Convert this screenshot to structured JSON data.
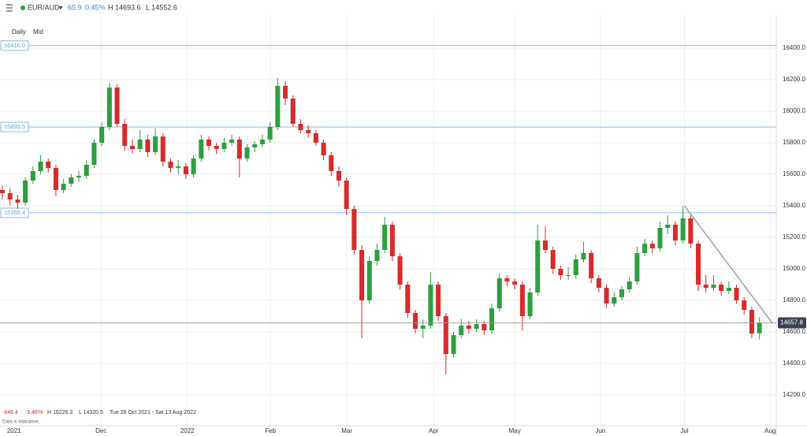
{
  "header": {
    "pair": "EUR/AUD",
    "change": "65.9",
    "change_pct": "0.45%",
    "high": "H 14693.6",
    "low": "L 14552.6"
  },
  "controls": {
    "interval": "Daily",
    "price_type": "Mid"
  },
  "footer": {
    "change": "-846.4",
    "change_pct": "-5.46%",
    "high": "H 16226.3",
    "low": "L 14320.5",
    "range": "Tue 26 Oct 2021 - Sat 13 Aug 2022",
    "note": "Data is indicative"
  },
  "chart_data": {
    "type": "candlestick",
    "up_color": "#2e9e3e",
    "down_color": "#d92a2a",
    "xlim": [
      -0.31,
      101.2
    ],
    "xticks": [
      {
        "value": 0.6,
        "label": "2021"
      },
      {
        "value": 12.9,
        "label": "Dec"
      },
      {
        "value": 24.2,
        "label": "2022"
      },
      {
        "value": 35.05,
        "label": "Feb"
      },
      {
        "value": 45.05,
        "label": "Mar"
      },
      {
        "value": 56.4,
        "label": "Apr"
      },
      {
        "value": 67.0,
        "label": "May"
      },
      {
        "value": 78.2,
        "label": "Jun"
      },
      {
        "value": 89.2,
        "label": "Jul"
      },
      {
        "value": 100.4,
        "label": "Aug"
      }
    ],
    "ylim": [
      14005,
      16605
    ],
    "yticks": [
      {
        "value": 14200,
        "label": "14200.0"
      },
      {
        "value": 14400,
        "label": "14400.0"
      },
      {
        "value": 14600,
        "label": "14600.0"
      },
      {
        "value": 14800,
        "label": "14800.0"
      },
      {
        "value": 15000,
        "label": "15000.0"
      },
      {
        "value": 15200,
        "label": "15200.0"
      },
      {
        "value": 15400,
        "label": "15400.0"
      },
      {
        "value": 15600,
        "label": "15600.0"
      },
      {
        "value": 15800,
        "label": "15800.0"
      },
      {
        "value": 16000,
        "label": "16000.0"
      },
      {
        "value": 16200,
        "label": "16200.0"
      },
      {
        "value": 16400,
        "label": "16400.0"
      }
    ],
    "grid": true,
    "levels": [
      {
        "value": 16416.0,
        "label": "16416.0"
      },
      {
        "value": 15899.5,
        "label": "15899.5"
      },
      {
        "value": 15355.4,
        "label": "15355.4"
      }
    ],
    "level_color": "#8cb8e8",
    "last_price": {
      "value": 14657.8,
      "label": "14657.8"
    },
    "trendline": {
      "x": [
        89.2,
        100.7
      ],
      "y": [
        15400,
        14655
      ]
    },
    "candles": [
      [
        15500,
        15530,
        15440,
        15480
      ],
      [
        15480,
        15510,
        15400,
        15440
      ],
      [
        15440,
        15470,
        15380,
        15420
      ],
      [
        15420,
        15580,
        15400,
        15560
      ],
      [
        15560,
        15650,
        15540,
        15620
      ],
      [
        15620,
        15720,
        15600,
        15680
      ],
      [
        15680,
        15700,
        15610,
        15640
      ],
      [
        15640,
        15660,
        15460,
        15500
      ],
      [
        15500,
        15570,
        15480,
        15540
      ],
      [
        15540,
        15600,
        15520,
        15580
      ],
      [
        15580,
        15620,
        15550,
        15590
      ],
      [
        15590,
        15690,
        15570,
        15660
      ],
      [
        15660,
        15820,
        15640,
        15800
      ],
      [
        15800,
        15930,
        15780,
        15900
      ],
      [
        15900,
        16180,
        15880,
        16150
      ],
      [
        16150,
        16170,
        15900,
        15920
      ],
      [
        15920,
        15950,
        15750,
        15780
      ],
      [
        15780,
        15820,
        15730,
        15760
      ],
      [
        15760,
        15880,
        15740,
        15820
      ],
      [
        15820,
        15850,
        15710,
        15740
      ],
      [
        15740,
        15890,
        15720,
        15840
      ],
      [
        15840,
        15860,
        15650,
        15680
      ],
      [
        15680,
        15700,
        15610,
        15640
      ],
      [
        15640,
        15690,
        15600,
        15650
      ],
      [
        15650,
        15670,
        15570,
        15600
      ],
      [
        15600,
        15720,
        15580,
        15700
      ],
      [
        15700,
        15850,
        15680,
        15820
      ],
      [
        15820,
        15840,
        15750,
        15780
      ],
      [
        15780,
        15800,
        15730,
        15760
      ],
      [
        15760,
        15830,
        15740,
        15800
      ],
      [
        15800,
        15850,
        15780,
        15820
      ],
      [
        15820,
        15840,
        15580,
        15700
      ],
      [
        15700,
        15790,
        15680,
        15770
      ],
      [
        15770,
        15810,
        15740,
        15790
      ],
      [
        15790,
        15850,
        15770,
        15820
      ],
      [
        15820,
        15930,
        15800,
        15900
      ],
      [
        15900,
        16210,
        15880,
        16160
      ],
      [
        16160,
        16190,
        16040,
        16080
      ],
      [
        16080,
        16100,
        15900,
        15920
      ],
      [
        15920,
        15950,
        15860,
        15880
      ],
      [
        15880,
        15910,
        15830,
        15860
      ],
      [
        15860,
        15880,
        15780,
        15800
      ],
      [
        15800,
        15820,
        15690,
        15720
      ],
      [
        15720,
        15740,
        15590,
        15620
      ],
      [
        15620,
        15650,
        15520,
        15560
      ],
      [
        15560,
        15580,
        15340,
        15380
      ],
      [
        15380,
        15400,
        15090,
        15120
      ],
      [
        15120,
        15150,
        14560,
        14800
      ],
      [
        14800,
        15080,
        14780,
        15050
      ],
      [
        15050,
        15160,
        15020,
        15120
      ],
      [
        15120,
        15330,
        15100,
        15280
      ],
      [
        15280,
        15300,
        15050,
        15080
      ],
      [
        15080,
        15100,
        14870,
        14900
      ],
      [
        14900,
        14920,
        14690,
        14720
      ],
      [
        14720,
        14740,
        14590,
        14620
      ],
      [
        14620,
        14680,
        14560,
        14640
      ],
      [
        14640,
        14980,
        14620,
        14900
      ],
      [
        14900,
        14920,
        14670,
        14700
      ],
      [
        14700,
        14720,
        14330,
        14460
      ],
      [
        14460,
        14600,
        14440,
        14580
      ],
      [
        14580,
        14680,
        14560,
        14640
      ],
      [
        14640,
        14670,
        14590,
        14620
      ],
      [
        14620,
        14680,
        14600,
        14650
      ],
      [
        14650,
        14670,
        14580,
        14610
      ],
      [
        14610,
        14780,
        14590,
        14750
      ],
      [
        14750,
        14970,
        14730,
        14940
      ],
      [
        14940,
        14960,
        14890,
        14920
      ],
      [
        14920,
        14940,
        14870,
        14900
      ],
      [
        14900,
        14920,
        14610,
        14700
      ],
      [
        14700,
        14880,
        14680,
        14850
      ],
      [
        14850,
        15280,
        14830,
        15180
      ],
      [
        15180,
        15270,
        15100,
        15120
      ],
      [
        15120,
        15140,
        14970,
        15000
      ],
      [
        15000,
        15020,
        14930,
        14960
      ],
      [
        14960,
        15010,
        14930,
        14960
      ],
      [
        14960,
        15090,
        14940,
        15060
      ],
      [
        15060,
        15170,
        15040,
        15100
      ],
      [
        15100,
        15120,
        14910,
        14940
      ],
      [
        14940,
        14960,
        14850,
        14880
      ],
      [
        14880,
        14900,
        14750,
        14780
      ],
      [
        14780,
        14850,
        14760,
        14820
      ],
      [
        14820,
        14890,
        14800,
        14870
      ],
      [
        14870,
        14950,
        14850,
        14920
      ],
      [
        14920,
        15140,
        14900,
        15100
      ],
      [
        15100,
        15190,
        15080,
        15160
      ],
      [
        15160,
        15180,
        15100,
        15130
      ],
      [
        15130,
        15300,
        15110,
        15260
      ],
      [
        15260,
        15340,
        15220,
        15280
      ],
      [
        15280,
        15300,
        15150,
        15180
      ],
      [
        15180,
        15400,
        15160,
        15320
      ],
      [
        15320,
        15340,
        15130,
        15160
      ],
      [
        15160,
        15180,
        14860,
        14900
      ],
      [
        14900,
        14960,
        14850,
        14880
      ],
      [
        14880,
        14960,
        14860,
        14900
      ],
      [
        14900,
        14920,
        14830,
        14860
      ],
      [
        14860,
        14920,
        14840,
        14880
      ],
      [
        14880,
        14900,
        14780,
        14800
      ],
      [
        14800,
        14820,
        14710,
        14740
      ],
      [
        14740,
        14760,
        14560,
        14590
      ],
      [
        14591.9,
        14693.6,
        14552.6,
        14657.8
      ]
    ]
  }
}
